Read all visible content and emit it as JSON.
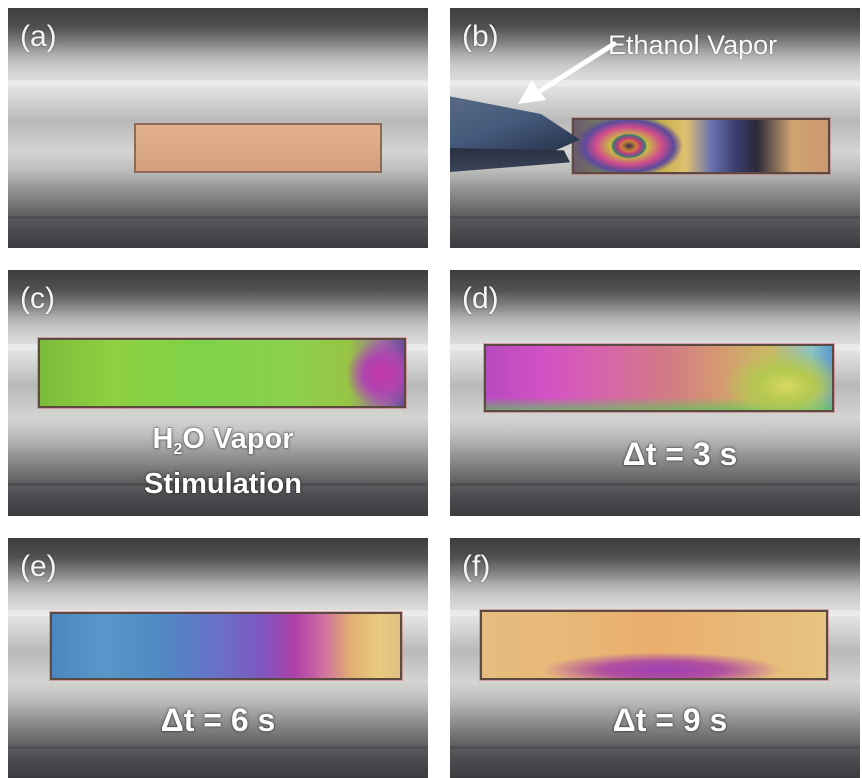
{
  "panels": {
    "a": {
      "label": "(a)"
    },
    "b": {
      "label": "(b)",
      "annotation": "Ethanol Vapor"
    },
    "c": {
      "label": "(c)",
      "caption_h": "H",
      "caption_sub": "2",
      "caption_rest": "O Vapor",
      "caption_line2": "Stimulation"
    },
    "d": {
      "label": "(d)",
      "caption": "Δt = 3 s"
    },
    "e": {
      "label": "(e)",
      "caption": "Δt = 6 s"
    },
    "f": {
      "label": "(f)",
      "caption": "Δt = 9 s"
    }
  }
}
